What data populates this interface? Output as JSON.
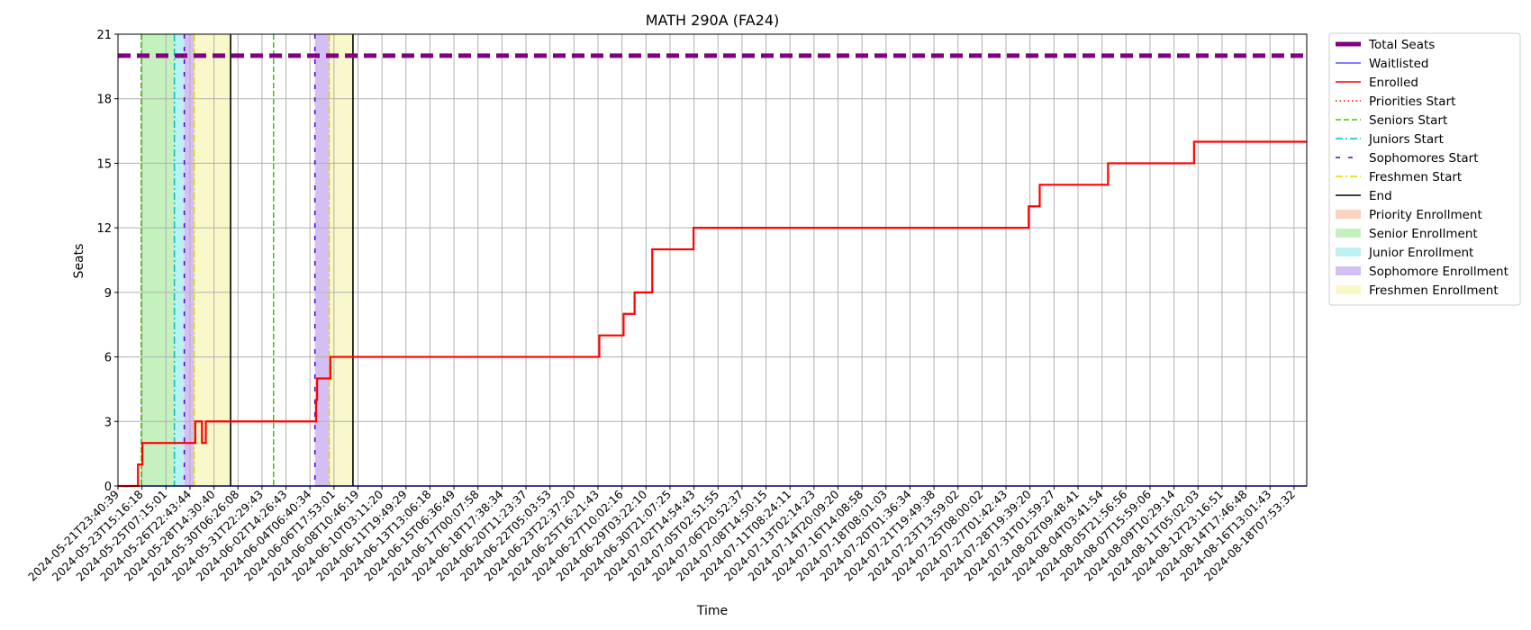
{
  "chart_data": {
    "type": "line",
    "title": "MATH 290A (FA24)",
    "xlabel": "Time",
    "ylabel": "Seats",
    "ylim": [
      0,
      21
    ],
    "yticks": [
      0,
      3,
      6,
      9,
      12,
      15,
      18,
      21
    ],
    "grid": true,
    "legend_position": "outside-right",
    "x_range": [
      "2024-05-21T23:40:39",
      "2024-08-19T20:30:00"
    ],
    "xtick_labels": [
      "2024-05-21T23:40:39",
      "2024-05-23T15:16:18",
      "2024-05-25T07:15:01",
      "2024-05-26T22:43:44",
      "2024-05-28T14:30:40",
      "2024-05-30T06:26:08",
      "2024-05-31T22:29:43",
      "2024-06-02T14:26:43",
      "2024-06-04T06:40:34",
      "2024-06-06T17:53:01",
      "2024-06-08T10:46:19",
      "2024-06-10T03:11:20",
      "2024-06-11T19:49:29",
      "2024-06-13T13:06:18",
      "2024-06-15T06:36:49",
      "2024-06-17T00:07:58",
      "2024-06-18T17:38:34",
      "2024-06-20T11:23:37",
      "2024-06-22T05:03:53",
      "2024-06-23T22:37:20",
      "2024-06-25T16:21:43",
      "2024-06-27T10:02:16",
      "2024-06-29T03:22:10",
      "2024-06-30T21:07:25",
      "2024-07-02T14:54:43",
      "2024-07-05T02:51:55",
      "2024-07-06T20:52:37",
      "2024-07-08T14:50:15",
      "2024-07-11T08:24:11",
      "2024-07-13T02:14:23",
      "2024-07-14T20:09:20",
      "2024-07-16T14:08:58",
      "2024-07-18T08:01:03",
      "2024-07-20T01:36:34",
      "2024-07-21T19:49:38",
      "2024-07-23T13:59:02",
      "2024-07-25T08:00:02",
      "2024-07-27T01:42:43",
      "2024-07-28T19:39:20",
      "2024-07-31T01:59:27",
      "2024-08-02T09:48:41",
      "2024-08-04T03:41:54",
      "2024-08-05T21:56:56",
      "2024-08-07T15:59:06",
      "2024-08-09T10:29:14",
      "2024-08-11T05:02:03",
      "2024-08-12T23:16:51",
      "2024-08-14T17:46:48",
      "2024-08-16T13:01:43",
      "2024-08-18T07:53:32"
    ],
    "series": [
      {
        "name": "Total Seats",
        "color": "#800080",
        "style": "dashed-thick",
        "points": [
          [
            "2024-05-21T23:40:39",
            20
          ],
          [
            "2024-08-19T20:30:00",
            20
          ]
        ]
      },
      {
        "name": "Waitlisted",
        "color": "#0000ff",
        "style": "solid",
        "points": [
          [
            "2024-05-21T23:40:39",
            0
          ],
          [
            "2024-08-19T20:30:00",
            0
          ]
        ]
      },
      {
        "name": "Enrolled",
        "color": "#ff0000",
        "style": "step",
        "points": [
          [
            "2024-05-21T23:40:39",
            0
          ],
          [
            "2024-05-23T12:00:00",
            1
          ],
          [
            "2024-05-23T20:00:00",
            2
          ],
          [
            "2024-05-27T20:00:00",
            3
          ],
          [
            "2024-05-28T08:00:00",
            2
          ],
          [
            "2024-05-28T15:00:00",
            3
          ],
          [
            "2024-06-05T23:00:00",
            4
          ],
          [
            "2024-06-06T01:00:00",
            5
          ],
          [
            "2024-06-07T01:00:00",
            6
          ],
          [
            "2024-06-27T09:00:00",
            7
          ],
          [
            "2024-06-29T05:00:00",
            8
          ],
          [
            "2024-06-30T01:00:00",
            9
          ],
          [
            "2024-07-01T09:00:00",
            11
          ],
          [
            "2024-07-04T12:00:00",
            12
          ],
          [
            "2024-07-29T20:00:00",
            13
          ],
          [
            "2024-07-30T16:00:00",
            14
          ],
          [
            "2024-08-04T20:00:00",
            15
          ],
          [
            "2024-08-11T08:00:00",
            16
          ],
          [
            "2024-08-19T20:30:00",
            16
          ]
        ]
      }
    ],
    "markers": [
      {
        "name": "Priorities Start",
        "color": "#ff0000",
        "style": "dotted",
        "times": [
          "2024-05-23T18:00:00",
          "2024-06-02T18:00:00"
        ]
      },
      {
        "name": "Seniors Start",
        "color": "#33cc00",
        "style": "dashed",
        "times": [
          "2024-05-23T18:00:00",
          "2024-06-02T18:00:00"
        ]
      },
      {
        "name": "Juniors Start",
        "color": "#00bfbf",
        "style": "dashdot",
        "times": [
          "2024-05-26T06:00:00"
        ]
      },
      {
        "name": "Sophomores Start",
        "color": "#5500cc",
        "style": "loosedash",
        "times": [
          "2024-05-27T00:00:00",
          "2024-06-05T21:00:00"
        ]
      },
      {
        "name": "Freshmen Start",
        "color": "#e6d000",
        "style": "dashdot",
        "times": [
          "2024-05-27T18:00:00",
          "2024-06-06T23:00:00"
        ]
      },
      {
        "name": "End",
        "color": "#000000",
        "style": "solid",
        "times": [
          "2024-05-30T12:00:00",
          "2024-06-08T18:00:00"
        ]
      }
    ],
    "spans": [
      {
        "name": "Priority Enrollment",
        "color": "#f5c4aa",
        "ranges": []
      },
      {
        "name": "Senior Enrollment",
        "color": "#b2ecaa",
        "ranges": [
          [
            "2024-05-23T18:00:00",
            "2024-05-26T06:00:00"
          ]
        ]
      },
      {
        "name": "Junior Enrollment",
        "color": "#a5ecec",
        "ranges": [
          [
            "2024-05-26T06:00:00",
            "2024-05-27T00:00:00"
          ]
        ]
      },
      {
        "name": "Sophomore Enrollment",
        "color": "#c6aaf0",
        "ranges": [
          [
            "2024-05-27T00:00:00",
            "2024-05-27T18:00:00"
          ],
          [
            "2024-06-05T21:00:00",
            "2024-06-06T23:00:00"
          ]
        ]
      },
      {
        "name": "Freshmen Enrollment",
        "color": "#f5f5b9",
        "ranges": [
          [
            "2024-05-27T18:00:00",
            "2024-05-30T12:00:00"
          ],
          [
            "2024-06-06T23:00:00",
            "2024-06-08T18:00:00"
          ]
        ]
      }
    ],
    "legend": [
      {
        "label": "Total Seats",
        "kind": "line",
        "color": "#800080",
        "style": "dashed-thick"
      },
      {
        "label": "Waitlisted",
        "kind": "line",
        "color": "#0000ff",
        "style": "solid-thin"
      },
      {
        "label": "Enrolled",
        "kind": "line",
        "color": "#ff0000",
        "style": "solid"
      },
      {
        "label": "Priorities Start",
        "kind": "line",
        "color": "#ff0000",
        "style": "dotted"
      },
      {
        "label": "Seniors Start",
        "kind": "line",
        "color": "#33cc00",
        "style": "dashed"
      },
      {
        "label": "Juniors Start",
        "kind": "line",
        "color": "#00bfbf",
        "style": "dashdot"
      },
      {
        "label": "Sophomores Start",
        "kind": "line",
        "color": "#5500cc",
        "style": "loosedash"
      },
      {
        "label": "Freshmen Start",
        "kind": "line",
        "color": "#e6d000",
        "style": "dashdot"
      },
      {
        "label": "End",
        "kind": "line",
        "color": "#000000",
        "style": "solid"
      },
      {
        "label": "Priority Enrollment",
        "kind": "patch",
        "color": "#f5c4aa"
      },
      {
        "label": "Senior Enrollment",
        "kind": "patch",
        "color": "#b2ecaa"
      },
      {
        "label": "Junior Enrollment",
        "kind": "patch",
        "color": "#a5ecec"
      },
      {
        "label": "Sophomore Enrollment",
        "kind": "patch",
        "color": "#c6aaf0"
      },
      {
        "label": "Freshmen Enrollment",
        "kind": "patch",
        "color": "#f5f5b9"
      }
    ]
  }
}
